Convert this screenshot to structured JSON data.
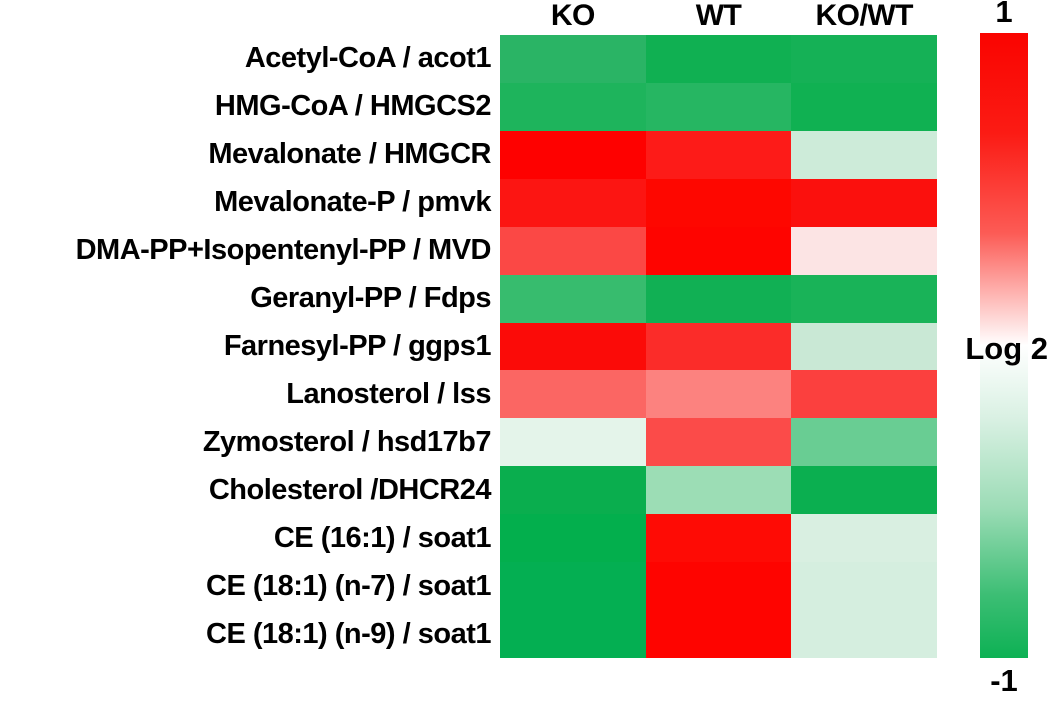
{
  "chart_data": {
    "type": "heatmap",
    "columns": [
      "KO",
      "WT",
      "KO/WT"
    ],
    "rows": [
      {
        "label": "Acetyl-CoA / acot1",
        "colors": [
          "#2ab465",
          "#10b052",
          "#15b156"
        ],
        "values": [
          -0.87,
          -0.98,
          -0.96
        ]
      },
      {
        "label": "HMG-CoA / HMGCS2",
        "colors": [
          "#1eb45c",
          "#26b662",
          "#10b152"
        ],
        "values": [
          -0.92,
          -0.89,
          -0.98
        ]
      },
      {
        "label": "Mevalonate / HMGCR",
        "colors": [
          "#fe0100",
          "#fd1b18",
          "#cdebd9"
        ],
        "values": [
          1.0,
          0.89,
          -0.2
        ]
      },
      {
        "label": "Mevalonate-P / pmvk",
        "colors": [
          "#fc1512",
          "#fe0700",
          "#fb100d"
        ],
        "values": [
          0.92,
          0.97,
          0.94
        ]
      },
      {
        "label": "DMA-PP+Isopentenyl-PP / MVD",
        "colors": [
          "#fb4845",
          "#fe0400",
          "#fce4e4"
        ],
        "values": [
          0.72,
          0.98,
          0.11
        ]
      },
      {
        "label": "Geranyl-PP / Fdps",
        "colors": [
          "#37bc6e",
          "#11b054",
          "#19b358"
        ],
        "values": [
          -0.82,
          -0.98,
          -0.94
        ]
      },
      {
        "label": "Farnesyl-PP / ggps1",
        "colors": [
          "#fb0b08",
          "#fb2c29",
          "#c9e8d5"
        ],
        "values": [
          0.96,
          0.83,
          -0.22
        ]
      },
      {
        "label": "Lanosterol / lss",
        "colors": [
          "#fb6663",
          "#fc827f",
          "#fb403e"
        ],
        "values": [
          0.6,
          0.49,
          0.75
        ]
      },
      {
        "label": "Zymosterol / hsd17b7",
        "colors": [
          "#e4f4ea",
          "#fb4b49",
          "#69cd93"
        ],
        "values": [
          -0.11,
          0.71,
          -0.61
        ]
      },
      {
        "label": "Cholesterol /DHCR24",
        "colors": [
          "#0aae4e",
          "#9cddb5",
          "#0baf50"
        ],
        "values": [
          -1.0,
          -0.41,
          -1.0
        ]
      },
      {
        "label": "CE (16:1) / soat1",
        "colors": [
          "#03af4d",
          "#fe0b05",
          "#d9efe1"
        ],
        "values": [
          -1.0,
          0.96,
          -0.16
        ]
      },
      {
        "label": "CE (18:1) (n-7) / soat1",
        "colors": [
          "#04af52",
          "#fe0400",
          "#d5eedf"
        ],
        "values": [
          -1.0,
          0.98,
          -0.17
        ]
      },
      {
        "label": "CE (18:1) (n-9) / soat1",
        "colors": [
          "#04af52",
          "#fe0400",
          "#d5eedf"
        ],
        "values": [
          -1.0,
          0.98,
          -0.17
        ]
      }
    ],
    "scale": {
      "axis_label": "Log 2",
      "max_label": "1",
      "min_label": "-1",
      "max": 1,
      "min": -1,
      "gradient_stops": [
        {
          "pos": 0.0,
          "color": "#fa0400"
        },
        {
          "pos": 0.16,
          "color": "#fb1b14"
        },
        {
          "pos": 0.32,
          "color": "#fc5b55"
        },
        {
          "pos": 0.5,
          "color": "#ffffff"
        },
        {
          "pos": 0.62,
          "color": "#d8f0e2"
        },
        {
          "pos": 0.76,
          "color": "#9cdcb6"
        },
        {
          "pos": 0.9,
          "color": "#3cbe74"
        },
        {
          "pos": 1.0,
          "color": "#0db154"
        }
      ]
    },
    "legend_position": "right",
    "grid": false
  }
}
